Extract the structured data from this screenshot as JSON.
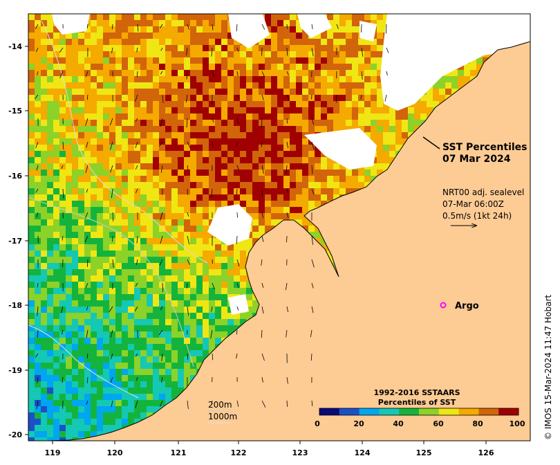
{
  "map": {
    "title_line1": "SST Percentiles",
    "title_line2": "07 Mar 2024",
    "current_line1": "NRT00 adj. sealevel",
    "current_line2": "07-Mar 06:00Z",
    "current_line3": "0.5m/s (1kt 24h)",
    "argo_label": "Argo",
    "depth_200": "200m",
    "depth_1000": "1000m",
    "credit": "© IMOS 15-Mar-2024 11:47 Hobart",
    "x_ticks": [
      "119",
      "120",
      "121",
      "122",
      "123",
      "124",
      "125",
      "126"
    ],
    "y_ticks": [
      "-14",
      "-15",
      "-16",
      "-17",
      "-18",
      "-19",
      "-20"
    ],
    "colorbar_title_line1": "1992-2016 SSTAARS",
    "colorbar_title_line2": "Percentiles of SST",
    "colorbar_ticks": [
      "0",
      "20",
      "40",
      "60",
      "80",
      "100"
    ],
    "colorbar_colors": [
      "#0a0a78",
      "#1c50c8",
      "#00a6f0",
      "#14c8b4",
      "#14b43c",
      "#8cd228",
      "#f0e614",
      "#f5aa00",
      "#d2640a",
      "#a00000"
    ],
    "land_color": "#fdcb94",
    "argo_color": "#ff00ff"
  }
}
